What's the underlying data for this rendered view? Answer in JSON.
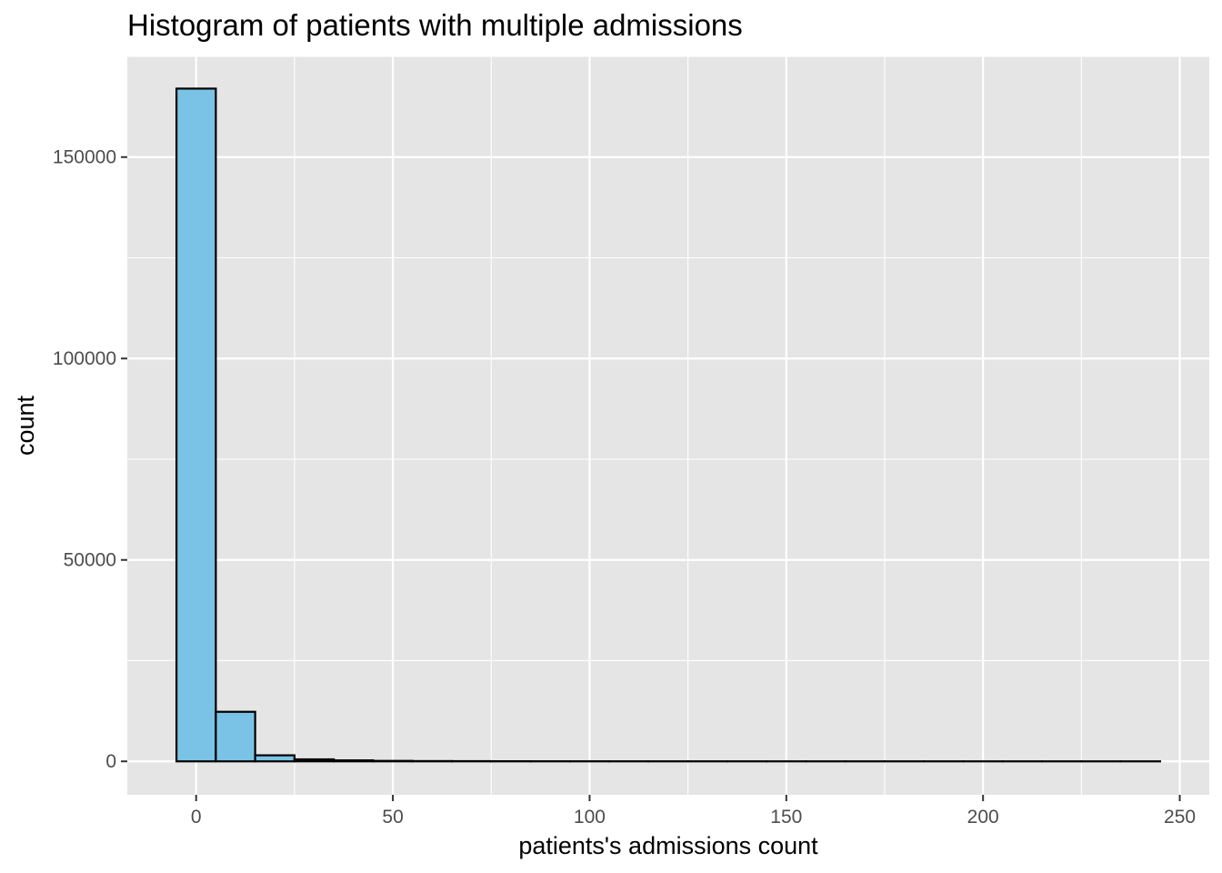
{
  "chart_data": {
    "type": "bar",
    "title": "Histogram of patients with multiple admissions",
    "xlabel": "patients's admissions count",
    "ylabel": "count",
    "xlim": [
      -17.5,
      257.5
    ],
    "ylim": [
      -8300,
      175000
    ],
    "x_ticks": [
      0,
      50,
      100,
      150,
      200,
      250
    ],
    "x_tick_labels": [
      "0",
      "50",
      "100",
      "150",
      "200",
      "250"
    ],
    "y_ticks": [
      0,
      50000,
      100000,
      150000
    ],
    "y_tick_labels": [
      "0",
      "50000",
      "100000",
      "150000"
    ],
    "bin_width": 10,
    "bin_centers": [
      0,
      10,
      20,
      30,
      40,
      50,
      60,
      70,
      80,
      90,
      100,
      110,
      120,
      130,
      140,
      150,
      160,
      170,
      180,
      190,
      200,
      210,
      220,
      230,
      240
    ],
    "values": [
      167000,
      12300,
      1500,
      500,
      250,
      120,
      70,
      50,
      30,
      20,
      15,
      10,
      8,
      6,
      5,
      4,
      3,
      3,
      2,
      2,
      2,
      1,
      1,
      1,
      1
    ],
    "grid": true,
    "legend": "none",
    "colors": {
      "panel_background": "#e5e5e5",
      "grid": "#ffffff",
      "bar_fill": "#7ac3e6",
      "bar_outline": "#000000",
      "tick_text": "#4d4d4d",
      "tick_mark": "#333333"
    }
  }
}
